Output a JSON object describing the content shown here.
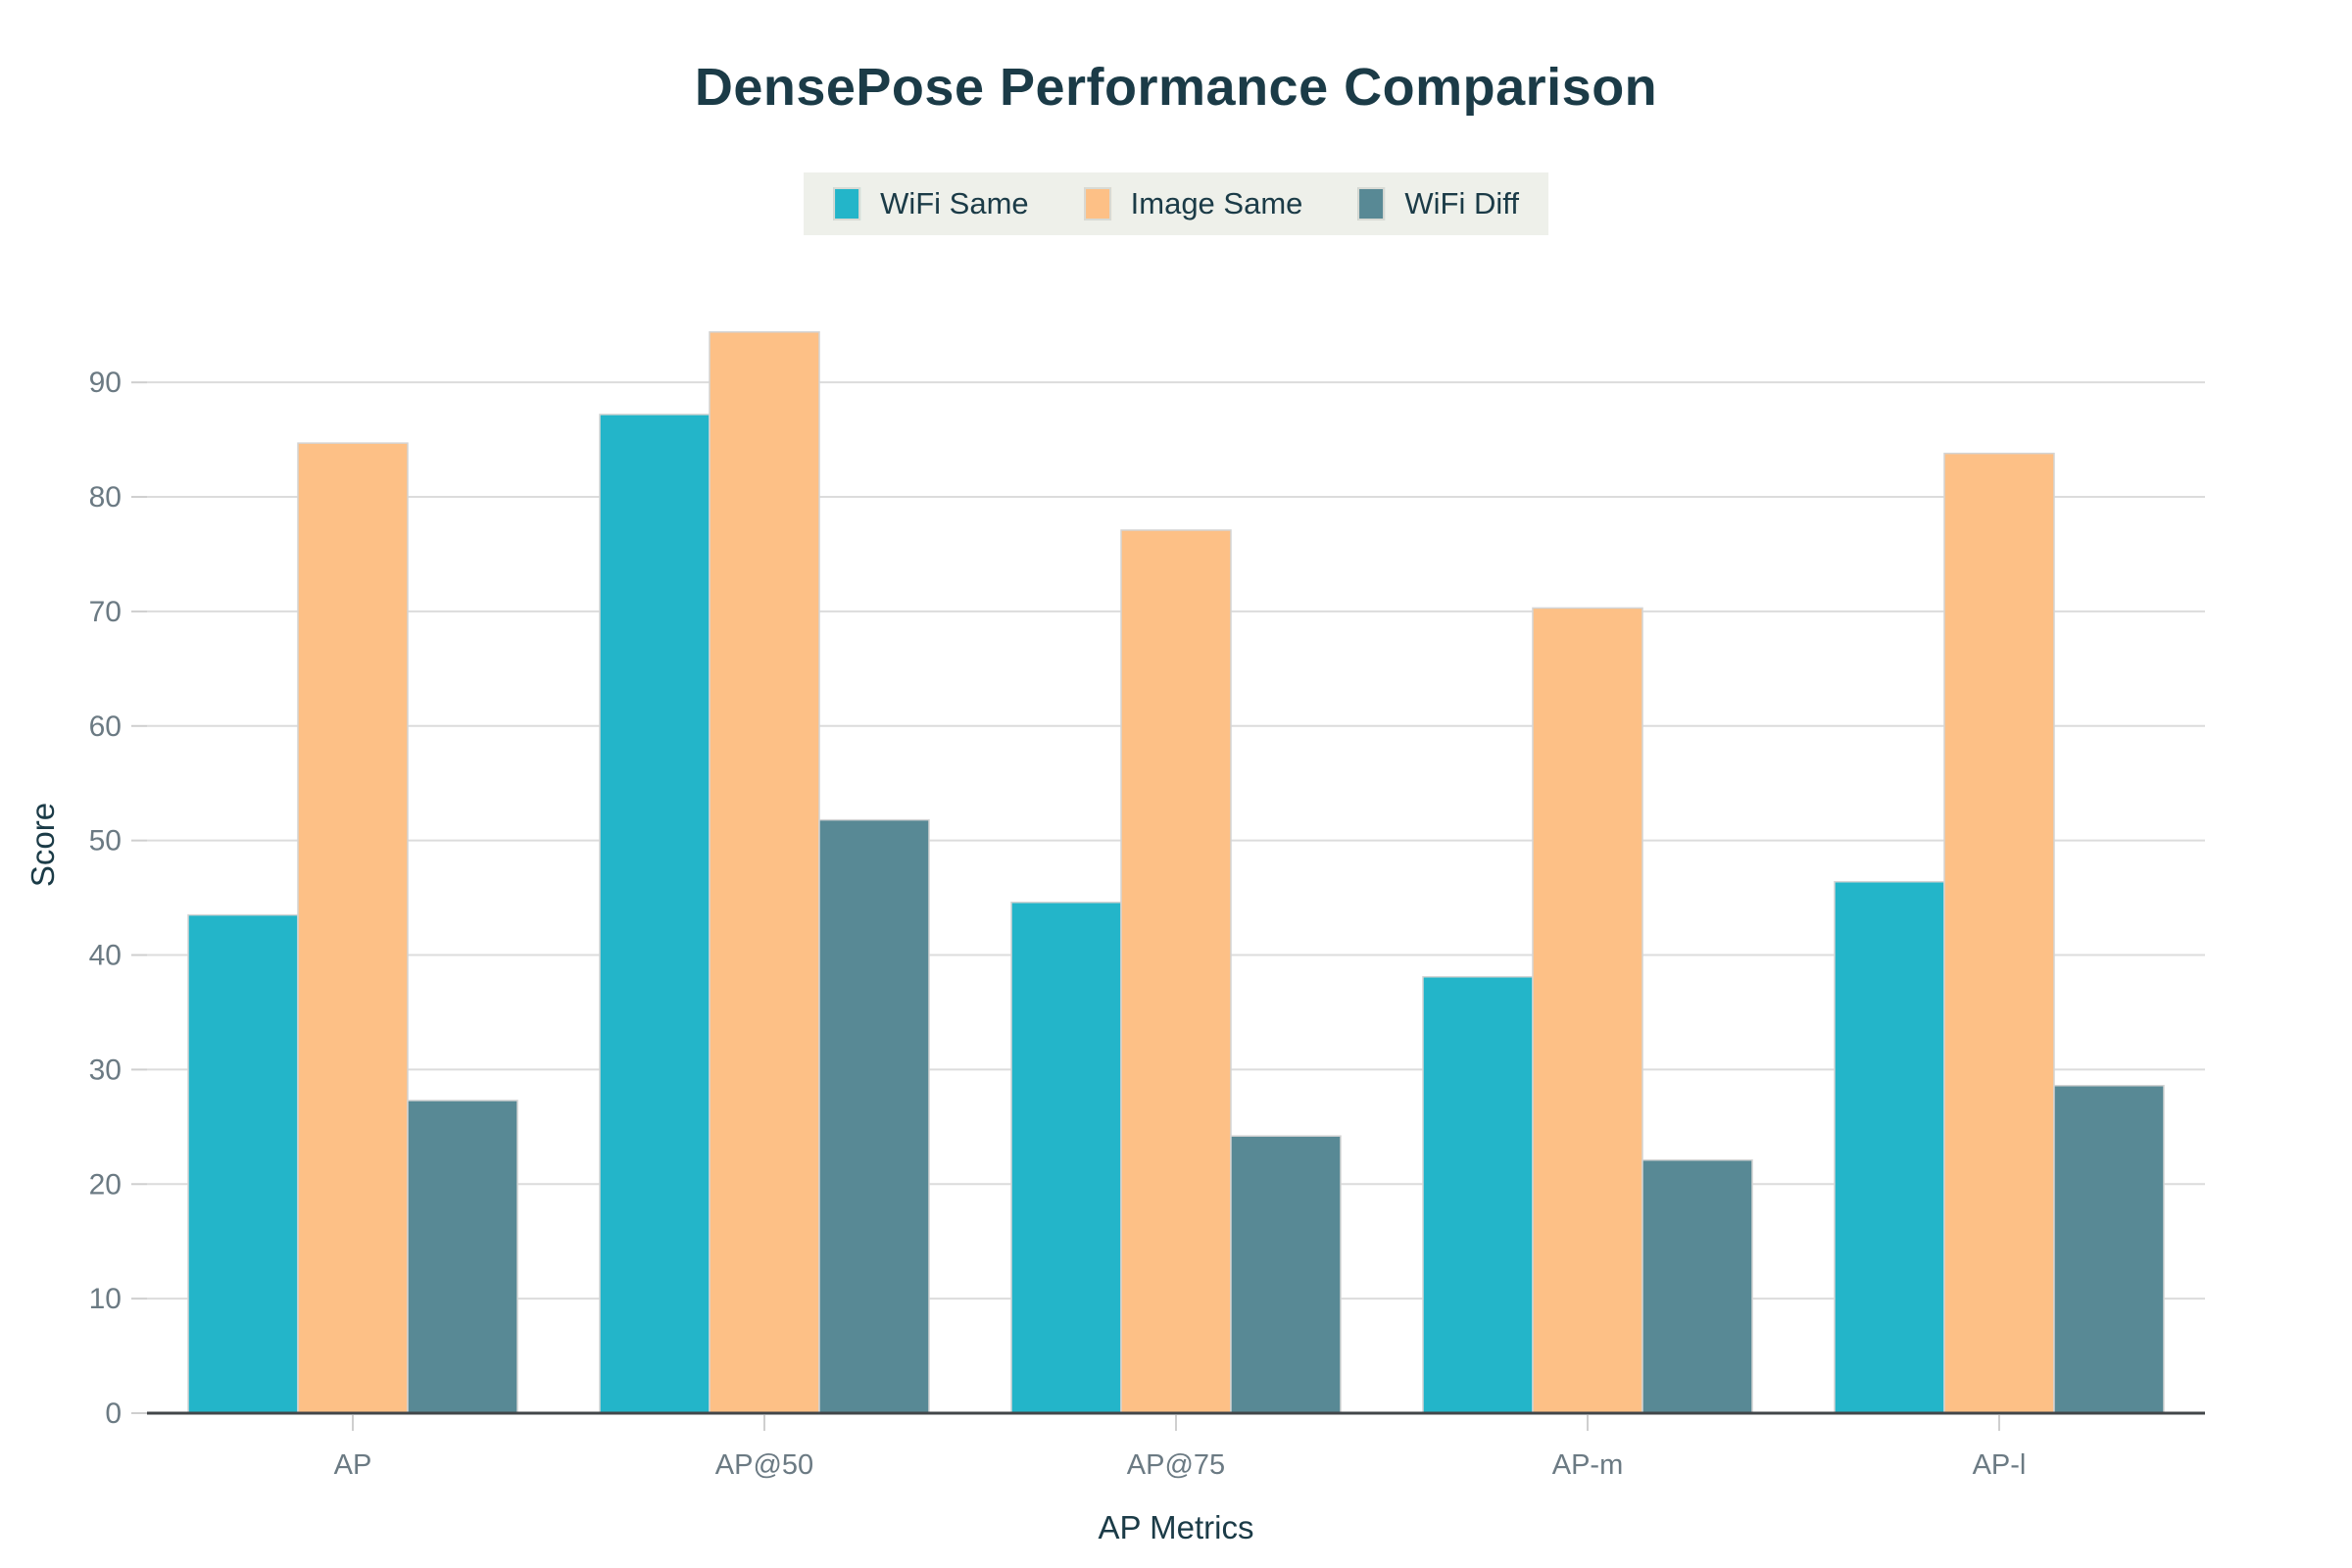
{
  "chart_data": {
    "type": "bar",
    "title": "DensePose Performance Comparison",
    "xlabel": "AP Metrics",
    "ylabel": "Score",
    "categories": [
      "AP",
      "AP@50",
      "AP@75",
      "AP-m",
      "AP-l"
    ],
    "series": [
      {
        "name": "WiFi Same",
        "color": "#23B5C9",
        "values": [
          43.5,
          87.2,
          44.6,
          38.1,
          46.4
        ]
      },
      {
        "name": "Image Same",
        "color": "#FDC086",
        "values": [
          84.7,
          94.4,
          77.1,
          70.3,
          83.8
        ]
      },
      {
        "name": "WiFi Diff",
        "color": "#588995",
        "values": [
          27.3,
          51.8,
          24.2,
          22.1,
          28.6
        ]
      }
    ],
    "ylim": [
      0,
      99
    ],
    "yticks": [
      0,
      10,
      20,
      30,
      40,
      50,
      60,
      70,
      80,
      90
    ],
    "grid": true,
    "legend_position": "top-center"
  },
  "style": {
    "background": "#FFFFFF",
    "title_color": "#1B3B47",
    "tick_label_color": "#6B7A83",
    "grid_color": "#DCDCDC",
    "axis_line_color": "#424649",
    "tick_mark_color": "#CFCFCF",
    "bar_stroke_color": "#D4D4D4",
    "legend_background": "#EEF0EA",
    "legend_text_color": "#1B3B47"
  }
}
